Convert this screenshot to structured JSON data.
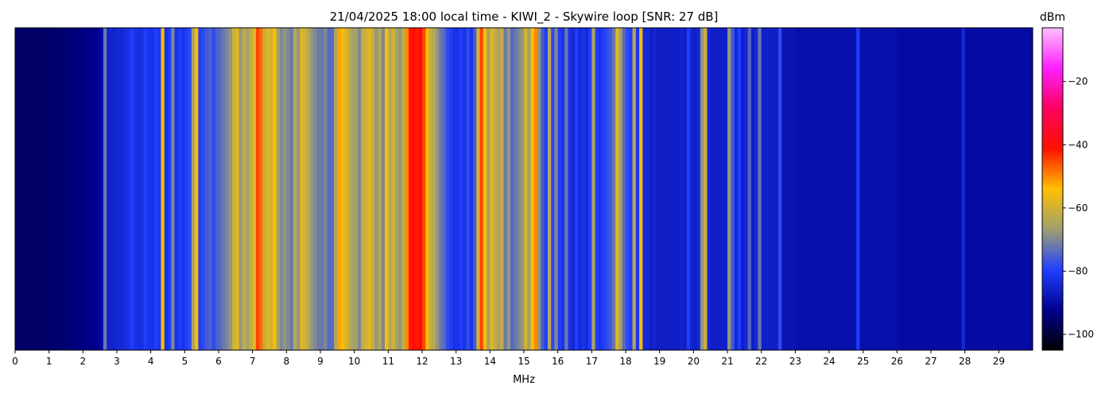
{
  "chart_data": {
    "type": "spectrogram",
    "title": "21/04/2025 18:00 local time - KIWI_2 - Skywire loop [SNR: 27 dB]",
    "x_label": "MHz",
    "colorbar_label": "dBm",
    "xlim": [
      0,
      30
    ],
    "xticks": [
      0,
      1,
      2,
      3,
      4,
      5,
      6,
      7,
      8,
      9,
      10,
      11,
      12,
      13,
      14,
      15,
      16,
      17,
      18,
      19,
      20,
      21,
      22,
      23,
      24,
      25,
      26,
      27,
      28,
      29
    ],
    "zlim": [
      -105,
      -3
    ],
    "zticks": [
      {
        "value": -20,
        "label": "−20"
      },
      {
        "value": -40,
        "label": "−40"
      },
      {
        "value": -60,
        "label": "−60"
      },
      {
        "value": -80,
        "label": "−80"
      },
      {
        "value": -100,
        "label": "−100"
      }
    ],
    "colormap": [
      "#000000",
      "#000090",
      "#2040ff",
      "#a0a070",
      "#ffc000",
      "#ff1000",
      "#ff0060",
      "#ff20ff",
      "#ffc0ff"
    ],
    "bin_width": 0.1,
    "values": [
      -96,
      -96,
      -96,
      -96,
      -96,
      -96,
      -96,
      -96,
      -96,
      -96,
      -95,
      -95,
      -95,
      -95,
      -95,
      -95,
      -94,
      -94,
      -94,
      -94,
      -93,
      -93,
      -93,
      -93,
      -92,
      -90,
      -72,
      -85,
      -85,
      -85,
      -84,
      -84,
      -83,
      -82,
      -80,
      -82,
      -83,
      -82,
      -80,
      -82,
      -82,
      -80,
      -81,
      -55,
      -82,
      -80,
      -70,
      -82,
      -80,
      -82,
      -80,
      -78,
      -65,
      -55,
      -80,
      -78,
      -76,
      -75,
      -78,
      -75,
      -74,
      -72,
      -70,
      -68,
      -60,
      -58,
      -68,
      -62,
      -66,
      -62,
      -58,
      -45,
      -48,
      -62,
      -58,
      -60,
      -55,
      -66,
      -70,
      -68,
      -70,
      -72,
      -64,
      -68,
      -58,
      -60,
      -64,
      -68,
      -70,
      -72,
      -72,
      -70,
      -74,
      -74,
      -65,
      -52,
      -55,
      -58,
      -62,
      -66,
      -66,
      -70,
      -62,
      -60,
      -58,
      -62,
      -68,
      -64,
      -70,
      -55,
      -64,
      -60,
      -66,
      -68,
      -62,
      -50,
      -42,
      -40,
      -42,
      -40,
      -45,
      -55,
      -62,
      -64,
      -68,
      -72,
      -74,
      -78,
      -80,
      -82,
      -82,
      -80,
      -82,
      -78,
      -82,
      -76,
      -60,
      -45,
      -55,
      -66,
      -58,
      -62,
      -66,
      -62,
      -72,
      -68,
      -74,
      -72,
      -70,
      -68,
      -60,
      -66,
      -55,
      -50,
      -68,
      -76,
      -80,
      -64,
      -78,
      -70,
      -80,
      -82,
      -72,
      -82,
      -84,
      -80,
      -84,
      -82,
      -84,
      -80,
      -65,
      -80,
      -82,
      -80,
      -78,
      -76,
      -72,
      -58,
      -66,
      -74,
      -78,
      -80,
      -64,
      -82,
      -56,
      -84,
      -84,
      -86,
      -85,
      -86,
      -86,
      -86,
      -86,
      -86,
      -86,
      -86,
      -85,
      -86,
      -80,
      -85,
      -86,
      -84,
      -68,
      -60,
      -84,
      -86,
      -86,
      -86,
      -86,
      -86,
      -68,
      -76,
      -84,
      -80,
      -86,
      -84,
      -74,
      -86,
      -84,
      -72,
      -86,
      -86,
      -86,
      -86,
      -86,
      -78,
      -88,
      -88,
      -88,
      -88,
      -89,
      -89,
      -89,
      -89,
      -89,
      -89,
      -89,
      -89,
      -89,
      -89,
      -89,
      -89,
      -89,
      -89,
      -89,
      -89,
      -89,
      -89,
      -80,
      -89,
      -89,
      -89,
      -89,
      -89,
      -89,
      -89,
      -89,
      -89,
      -89,
      -89,
      -90,
      -90,
      -90,
      -90,
      -90,
      -90,
      -90,
      -90,
      -90,
      -90,
      -90,
      -90,
      -90,
      -90,
      -90,
      -90,
      -90,
      -90,
      -90,
      -84,
      -90,
      -90,
      -90,
      -90,
      -90,
      -90,
      -90,
      -90,
      -90,
      -90,
      -90,
      -90,
      -90,
      -90,
      -90,
      -90,
      -90,
      -90,
      -90,
      -90
    ]
  }
}
